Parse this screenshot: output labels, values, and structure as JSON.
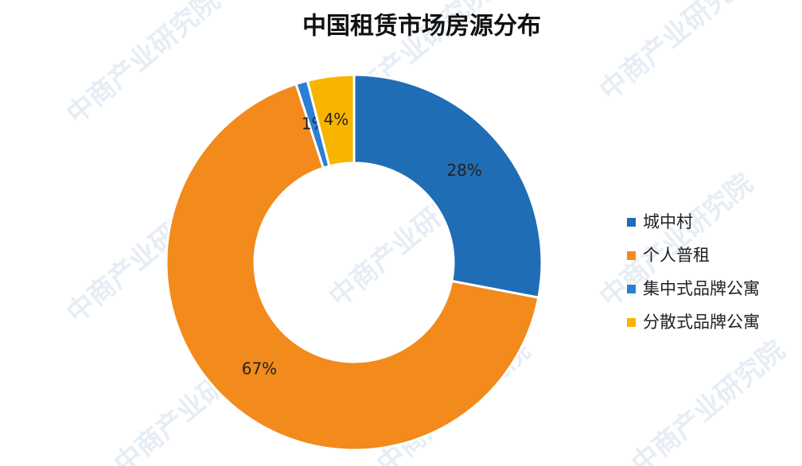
{
  "watermark": "中商产业研究院",
  "chart_data": {
    "type": "pie",
    "title": "中国租赁市场房源分布",
    "categories": [
      "城中村",
      "个人普租",
      "集中式品牌公寓",
      "分散式品牌公寓"
    ],
    "values": [
      28,
      67,
      1,
      4
    ],
    "value_labels": [
      "28%",
      "67%",
      "1%",
      "4%"
    ],
    "colors": [
      "#1f6db4",
      "#f28a1c",
      "#2a80d2",
      "#f7b500"
    ],
    "legend": "right"
  }
}
